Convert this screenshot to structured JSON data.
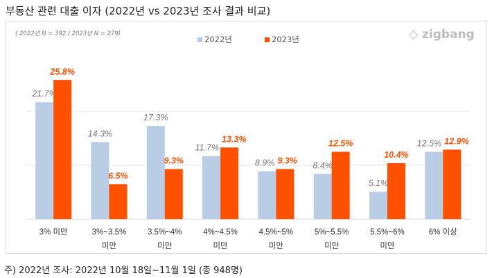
{
  "title": "부동산 관련 대출 이자 (2022년 vs 2023년 조사 결과 비교)",
  "sample_note": "( 2022년 N = 392 / 2023년 N = 279)",
  "logo": "zigbang",
  "footnote": "주) 2022년 조사: 2022년 10월 18일~11월 1일 (총 948명)",
  "chart_data": {
    "type": "bar",
    "categories": [
      [
        "3% 미만",
        ""
      ],
      [
        "3%~3.5%",
        "미만"
      ],
      [
        "3.5%~4%",
        "미만"
      ],
      [
        "4%~4.5%",
        "미만"
      ],
      [
        "4.5%~5%",
        "미만"
      ],
      [
        "5%~5.5%",
        "미만"
      ],
      [
        "5.5%~6%",
        "미만"
      ],
      [
        "6% 이상",
        ""
      ]
    ],
    "series": [
      {
        "name": "2022년",
        "color": "#b9cde5",
        "values": [
          21.7,
          14.3,
          17.3,
          11.7,
          8.9,
          8.4,
          5.1,
          12.5
        ],
        "labels": [
          "21.7%",
          "14.3%",
          "17.3%",
          "11.7%",
          "8.9%",
          "8.4%",
          "5.1%",
          "12.5%"
        ]
      },
      {
        "name": "2023년",
        "color": "#ff5000",
        "values": [
          25.8,
          6.5,
          9.3,
          13.3,
          9.3,
          12.5,
          10.4,
          12.9
        ],
        "labels": [
          "25.8%",
          "6.5%",
          "9.3%",
          "13.3%",
          "9.3%",
          "12.5%",
          "10.4%",
          "12.9%"
        ]
      }
    ],
    "ylim": [
      0,
      30
    ],
    "grid": true,
    "legend": "top-center"
  }
}
